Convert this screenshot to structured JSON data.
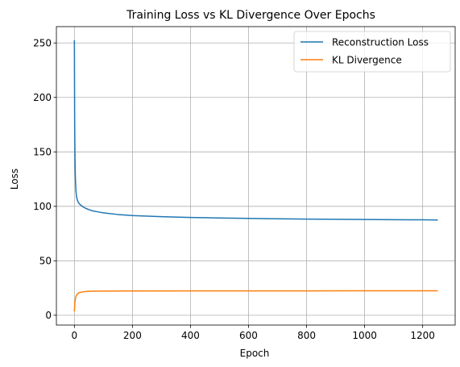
{
  "chart_data": {
    "type": "line",
    "title": "Training Loss vs KL Divergence Over Epochs",
    "xlabel": "Epoch",
    "ylabel": "Loss",
    "xlim": [
      -62,
      1312
    ],
    "ylim": [
      -9,
      265
    ],
    "xticks": [
      0,
      200,
      400,
      600,
      800,
      1000,
      1200
    ],
    "yticks": [
      0,
      50,
      100,
      150,
      200,
      250
    ],
    "grid": true,
    "legend_position": "upper right",
    "series": [
      {
        "name": "Reconstruction Loss",
        "color": "#1f77b4",
        "x": [
          0,
          1,
          2,
          3,
          4,
          5,
          6,
          7,
          8,
          10,
          12,
          15,
          20,
          25,
          30,
          40,
          50,
          60,
          80,
          100,
          150,
          200,
          300,
          400,
          500,
          600,
          700,
          800,
          900,
          1000,
          1100,
          1200,
          1250
        ],
        "y": [
          252,
          175,
          145,
          130,
          122,
          116,
          112,
          110,
          108,
          106,
          104.5,
          103,
          101.5,
          100.5,
          99.5,
          98,
          97,
          96,
          95,
          94,
          92.5,
          91.5,
          90.5,
          89.8,
          89.3,
          88.9,
          88.6,
          88.3,
          88.1,
          87.9,
          87.7,
          87.6,
          87.5
        ]
      },
      {
        "name": "KL Divergence",
        "color": "#ff7f0e",
        "x": [
          0,
          2,
          5,
          10,
          15,
          20,
          30,
          40,
          50,
          75,
          100,
          200,
          400,
          600,
          800,
          1000,
          1200,
          1250
        ],
        "y": [
          4,
          13,
          17,
          19.5,
          20.5,
          21,
          21.5,
          21.8,
          22,
          22.1,
          22.2,
          22.3,
          22.4,
          22.4,
          22.4,
          22.5,
          22.5,
          22.5
        ]
      }
    ]
  }
}
